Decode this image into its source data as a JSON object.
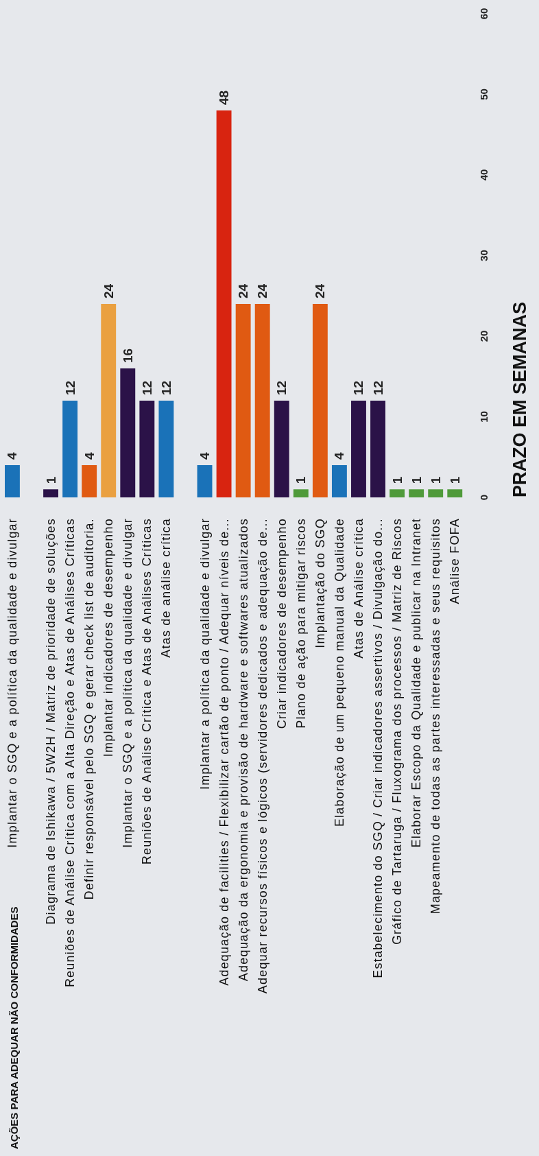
{
  "chart_data": {
    "type": "bar",
    "annotations": [
      "AÇÕES PARA ADEQUAR NÃO CONFORMIDADES"
    ],
    "ylabel": "PRAZO EM SEMANAS",
    "categories": [
      "Implantar o SGQ e a política da qualidade e divulgar",
      null,
      "Diagrama de Ishikawa / 5W2H  / Matriz de prioridade de soluções",
      "Reuniões de Análise Crítica com a Alta Direção e Atas de Análises Críticas",
      "Definir responsável pelo SGQ e gerar check list de auditoria.",
      "Implantar indicadores de desempenho",
      "Implantar o SGQ e a política da qualidade e divulgar",
      "Reuniões de Análise Crítica e Atas de Análises Críticas",
      "Atas de análise crítica",
      null,
      "Implantar a política da qualidade e divulgar",
      "Adequação de facilities / Flexibilizar cartão de ponto / Adequar níveis de...",
      "Adequação da ergonomia e provisão de hardware e softwares atualizados",
      "Adequar recursos físicos e lógicos (servidores dedicados e adequação de...",
      "Criar indicadores de desempenho",
      "Plano de ação para mitigar riscos",
      "Implantação do SGQ",
      "Elaboração de um pequeno manual da Qualidade",
      "Atas de Análise crítica",
      "Estabelecimento do SGQ / Criar indicadores assertivos / Divulgação do...",
      "Gráfico de Tartaruga / Fluxograma dos processos / Matriz de Riscos",
      "Elaborar Escopo da Qualidade e publicar na Intranet",
      "Mapeamento de todas as partes interessadas e seus requisitos",
      "Análise FOFA"
    ],
    "values": [
      4,
      null,
      1,
      12,
      4,
      24,
      16,
      12,
      12,
      null,
      4,
      48,
      24,
      24,
      12,
      1,
      24,
      4,
      12,
      12,
      1,
      1,
      1,
      1
    ],
    "colors": [
      "#1a72b8",
      null,
      "#2b1248",
      "#1a72b8",
      "#e05a12",
      "#eaa040",
      "#2b1248",
      "#2b1248",
      "#1a72b8",
      null,
      "#1a72b8",
      "#d82410",
      "#e05a12",
      "#e05a12",
      "#2b1248",
      "#4f9a3a",
      "#e05a12",
      "#1a72b8",
      "#2b1248",
      "#2b1248",
      "#4f9a3a",
      "#4f9a3a",
      "#4f9a3a",
      "#4f9a3a"
    ],
    "ylim": [
      0,
      60
    ],
    "yticks": [
      0,
      10,
      20,
      30,
      40,
      50,
      60
    ],
    "data_labels": true
  }
}
